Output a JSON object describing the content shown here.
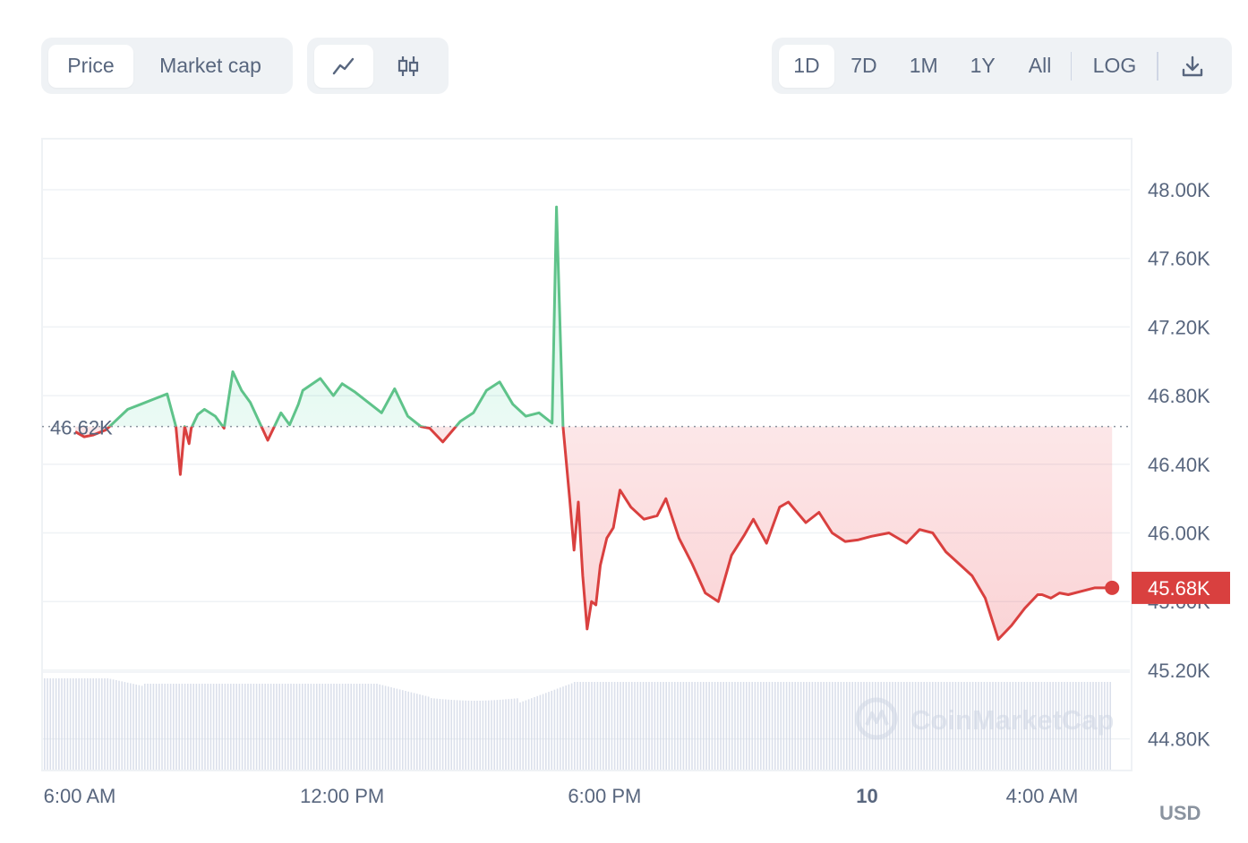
{
  "toolbar": {
    "metric_tabs": [
      {
        "label": "Price",
        "active": true
      },
      {
        "label": "Market cap",
        "active": false
      }
    ],
    "chart_type_icons": [
      {
        "icon": "line-chart-icon",
        "active": true
      },
      {
        "icon": "candlestick-icon",
        "active": false
      }
    ],
    "ranges": [
      {
        "label": "1D",
        "active": true
      },
      {
        "label": "7D",
        "active": false
      },
      {
        "label": "1M",
        "active": false
      },
      {
        "label": "1Y",
        "active": false
      },
      {
        "label": "All",
        "active": false
      }
    ],
    "log_label": "LOG",
    "download_icon": "download-icon"
  },
  "colors": {
    "up": "#16c784",
    "up_line": "#5fc38a",
    "down": "#ea3943",
    "down_line": "#d9403f",
    "grid": "#eff2f5",
    "volume": "#cfd6e4",
    "text": "#58667e"
  },
  "chart_data": {
    "type": "line",
    "title": "",
    "xlabel": "",
    "ylabel": "",
    "y_ticks": [
      "48.00K",
      "47.60K",
      "47.20K",
      "46.80K",
      "46.40K",
      "46.00K",
      "45.60K",
      "45.20K",
      "44.80K"
    ],
    "y_tick_values": [
      48000,
      47600,
      47200,
      46800,
      46400,
      46000,
      45600,
      45200,
      44800
    ],
    "x_ticks": [
      "6:00 AM",
      "12:00 PM",
      "6:00 PM",
      "10",
      "4:00 AM"
    ],
    "x_tick_hours": [
      6,
      12,
      18,
      24,
      28
    ],
    "currency": "USD",
    "baseline_label": "46.62K",
    "baseline_value": 46620,
    "current_label": "45.68K",
    "current_value": 45680,
    "watermark": "CoinMarketCap",
    "grid": true,
    "series": [
      {
        "hours": [
          5.9,
          6.1,
          6.3,
          6.6,
          7.1,
          7.4,
          7.7,
          8.0,
          8.2,
          8.3,
          8.4,
          8.5,
          8.55,
          8.7,
          8.85,
          9.1,
          9.3,
          9.5,
          9.7,
          9.9,
          10.3,
          10.6,
          10.8,
          11.0,
          11.1,
          11.5,
          11.8,
          12.0,
          12.3,
          12.6,
          12.9,
          13.2,
          13.5,
          13.8,
          14.0,
          14.3,
          14.7,
          15.0,
          15.3,
          15.6,
          15.9,
          16.2,
          16.5,
          16.8,
          16.9,
          17.05,
          17.2,
          17.3,
          17.4,
          17.5,
          17.6,
          17.7,
          17.8,
          17.9,
          18.05,
          18.2,
          18.35,
          18.6,
          18.9,
          19.2,
          19.4,
          19.7,
          20.0,
          20.3,
          20.6,
          20.9,
          21.2,
          21.4,
          21.7,
          22.0,
          22.2,
          22.6,
          22.9,
          23.2,
          23.5,
          23.8,
          24.1,
          24.5,
          24.9,
          25.2,
          25.5,
          25.8,
          26.1,
          26.4,
          26.7,
          27.0,
          27.3,
          27.6,
          27.9,
          28.0,
          28.2,
          28.4,
          28.6,
          28.9,
          29.2,
          29.4,
          29.6
        ],
        "prices": [
          46590,
          46560,
          46570,
          46600,
          46720,
          46750,
          46780,
          46810,
          46620,
          46340,
          46620,
          46520,
          46610,
          46690,
          46720,
          46680,
          46610,
          46940,
          46830,
          46760,
          46540,
          46700,
          46630,
          46750,
          46830,
          46900,
          46800,
          46870,
          46820,
          46760,
          46700,
          46840,
          46680,
          46620,
          46610,
          46530,
          46650,
          46700,
          46830,
          46880,
          46750,
          46680,
          46700,
          46640,
          47900,
          46620,
          46200,
          45900,
          46180,
          45750,
          45440,
          45600,
          45580,
          45810,
          45970,
          46030,
          46250,
          46150,
          46080,
          46100,
          46200,
          45970,
          45820,
          45650,
          45600,
          45870,
          45990,
          46080,
          45940,
          46150,
          46180,
          46060,
          46120,
          46000,
          45950,
          45960,
          45980,
          46000,
          45940,
          46020,
          46000,
          45890,
          45820,
          45750,
          45620,
          45380,
          45460,
          45560,
          45640,
          45640,
          45620,
          45650,
          45640,
          45660,
          45680,
          45680,
          45680
        ]
      }
    ]
  }
}
